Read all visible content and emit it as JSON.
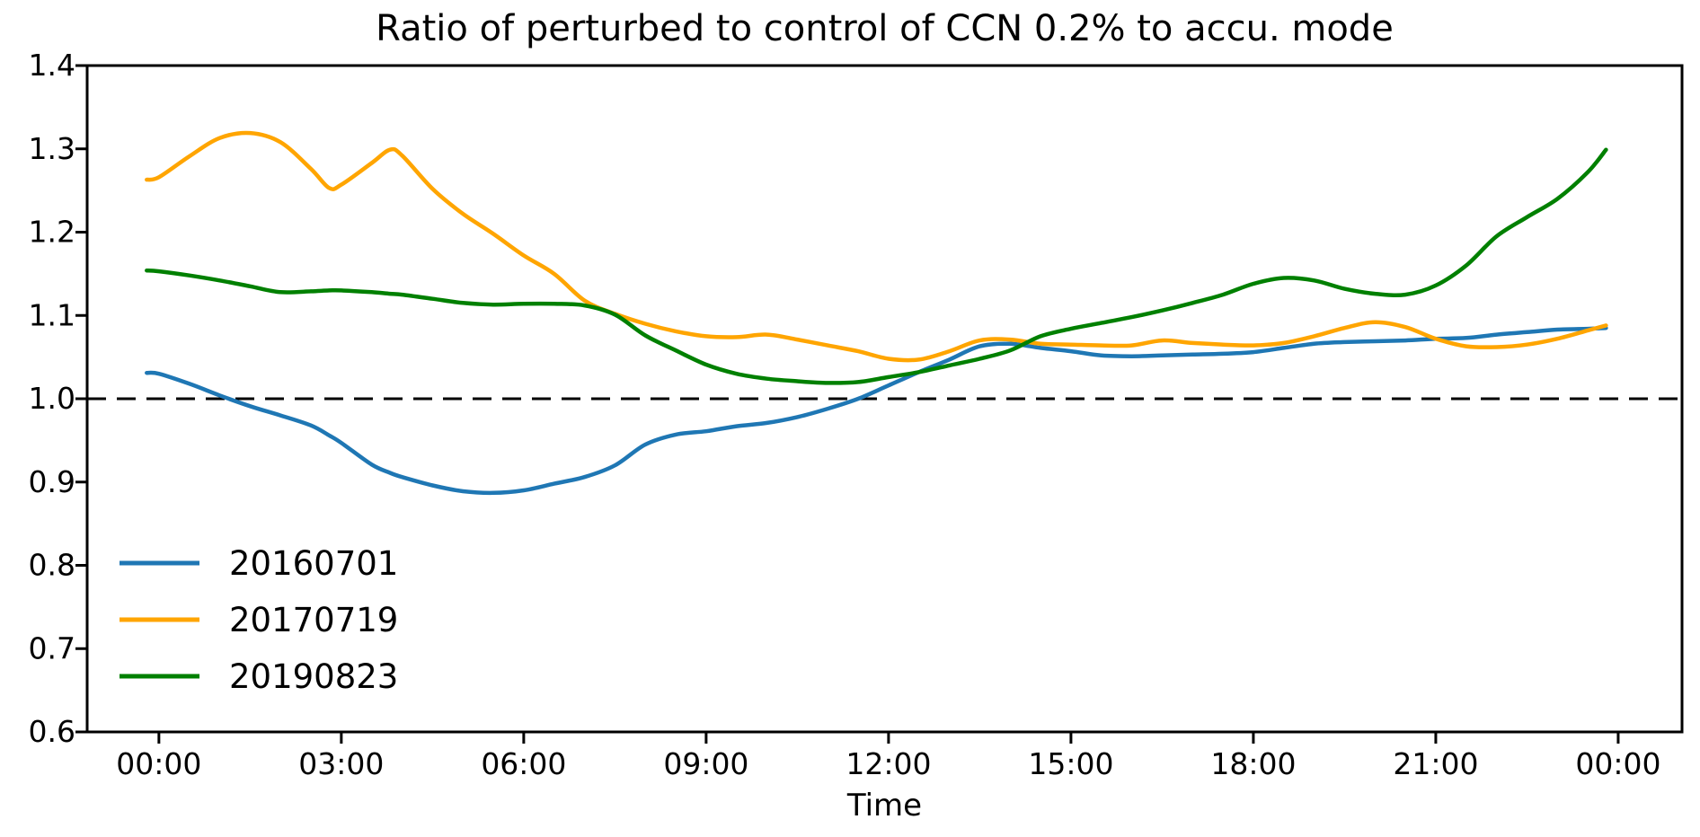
{
  "title": "Ratio of perturbed to control of CCN 0.2% to accu. mode",
  "xlabel": "Time",
  "chart_data": {
    "type": "line",
    "title": "Ratio of perturbed to control of CCN 0.2% to accu. mode",
    "xlabel": "Time",
    "ylabel": "",
    "grid": false,
    "ylim": [
      0.6,
      1.4
    ],
    "xlim_hours": [
      -1.18,
      25.05
    ],
    "y_tick_labels": [
      "0.6",
      "0.7",
      "0.8",
      "0.9",
      "1.0",
      "1.1",
      "1.2",
      "1.3",
      "1.4"
    ],
    "y_tick_values": [
      0.6,
      0.7,
      0.8,
      0.9,
      1.0,
      1.1,
      1.2,
      1.3,
      1.4
    ],
    "x_tick_labels": [
      "00:00",
      "03:00",
      "06:00",
      "09:00",
      "12:00",
      "15:00",
      "18:00",
      "21:00",
      "00:00"
    ],
    "x_tick_hours": [
      0,
      3,
      6,
      9,
      12,
      15,
      18,
      21,
      24
    ],
    "reference_line": {
      "value": 1.0,
      "style": "dashed",
      "color": "#000000"
    },
    "legend": {
      "position": "lower left",
      "frame": false
    },
    "x_hours": [
      -0.2,
      0,
      0.5,
      1,
      1.5,
      2,
      2.5,
      2.8,
      3,
      3.5,
      3.8,
      4,
      4.5,
      5,
      5.5,
      6,
      6.5,
      7,
      7.5,
      8,
      8.5,
      9,
      9.5,
      10,
      10.5,
      11,
      11.5,
      12,
      12.5,
      13,
      13.5,
      14,
      14.5,
      15,
      15.5,
      16,
      16.5,
      17,
      17.5,
      18,
      18.5,
      19,
      19.5,
      20,
      20.5,
      21,
      21.5,
      22,
      22.5,
      23,
      23.5,
      23.8
    ],
    "series": [
      {
        "name": "20160701",
        "color": "#1f77b4",
        "values": [
          1.031,
          1.03,
          1.018,
          1.004,
          0.991,
          0.98,
          0.968,
          0.956,
          0.947,
          0.921,
          0.911,
          0.906,
          0.896,
          0.889,
          0.887,
          0.89,
          0.898,
          0.906,
          0.92,
          0.945,
          0.957,
          0.961,
          0.967,
          0.971,
          0.978,
          0.988,
          1.0,
          1.016,
          1.032,
          1.047,
          1.063,
          1.066,
          1.061,
          1.057,
          1.052,
          1.051,
          1.052,
          1.053,
          1.054,
          1.056,
          1.061,
          1.066,
          1.068,
          1.069,
          1.07,
          1.072,
          1.073,
          1.077,
          1.08,
          1.083,
          1.084,
          1.085
        ]
      },
      {
        "name": "20170719",
        "color": "#ffa500",
        "values": [
          1.263,
          1.266,
          1.291,
          1.313,
          1.319,
          1.308,
          1.276,
          1.253,
          1.257,
          1.283,
          1.299,
          1.292,
          1.252,
          1.222,
          1.198,
          1.172,
          1.15,
          1.118,
          1.102,
          1.09,
          1.081,
          1.075,
          1.074,
          1.077,
          1.071,
          1.064,
          1.057,
          1.048,
          1.047,
          1.057,
          1.07,
          1.071,
          1.066,
          1.065,
          1.064,
          1.064,
          1.07,
          1.067,
          1.065,
          1.064,
          1.067,
          1.075,
          1.085,
          1.092,
          1.086,
          1.072,
          1.063,
          1.062,
          1.065,
          1.072,
          1.082,
          1.088
        ]
      },
      {
        "name": "20190823",
        "color": "#008000",
        "values": [
          1.154,
          1.153,
          1.148,
          1.142,
          1.135,
          1.128,
          1.129,
          1.13,
          1.13,
          1.128,
          1.126,
          1.125,
          1.12,
          1.115,
          1.113,
          1.114,
          1.114,
          1.112,
          1.101,
          1.076,
          1.058,
          1.041,
          1.03,
          1.024,
          1.021,
          1.019,
          1.02,
          1.026,
          1.032,
          1.04,
          1.048,
          1.058,
          1.075,
          1.084,
          1.091,
          1.098,
          1.106,
          1.115,
          1.125,
          1.138,
          1.145,
          1.142,
          1.132,
          1.126,
          1.125,
          1.136,
          1.16,
          1.195,
          1.218,
          1.24,
          1.272,
          1.299
        ]
      }
    ]
  }
}
